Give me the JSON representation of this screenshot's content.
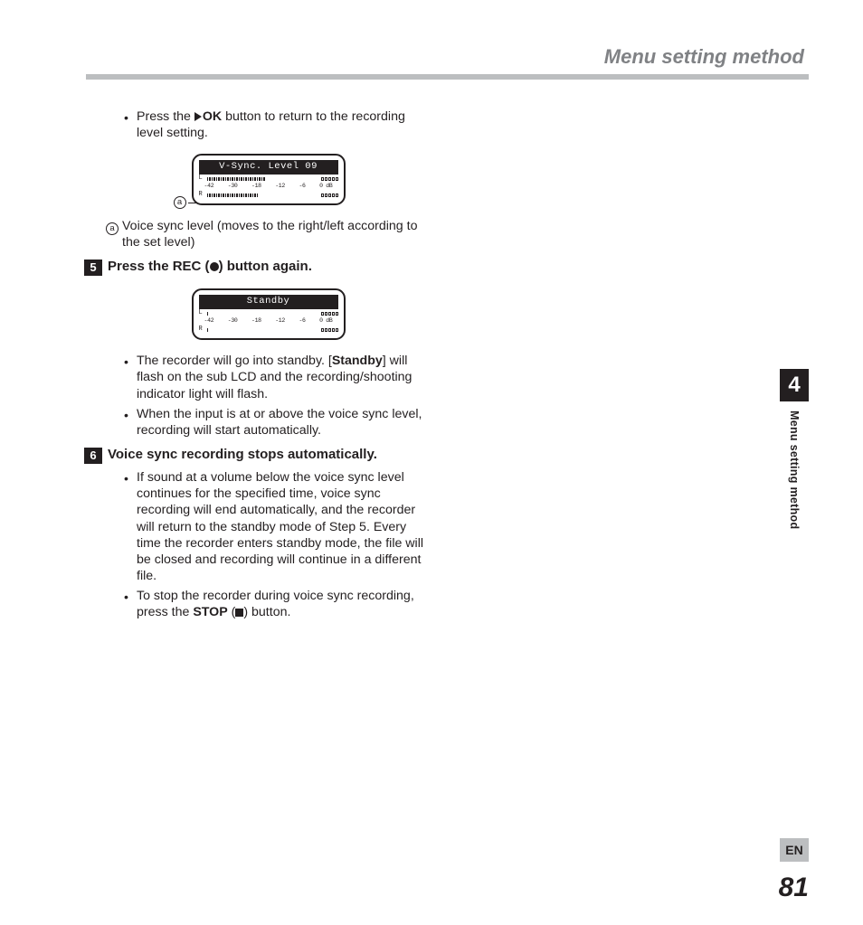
{
  "header": {
    "title": "Menu setting method"
  },
  "top_bullet": {
    "pre": "Press the ",
    "tri_ok": "OK",
    "post": " button to return to the recording level setting."
  },
  "lcd1": {
    "title": "V-Sync. Level 09",
    "ch_left": "L",
    "ch_right": "R",
    "scale": [
      "-42",
      "-30",
      "-18",
      "-12",
      "-6",
      "0 dB"
    ],
    "annot_letter": "a"
  },
  "annot_a": {
    "letter": "a",
    "text": "Voice sync level (moves to the right/left according to the set level)"
  },
  "step5": {
    "num": "5",
    "pre": "Press the ",
    "rec": "REC",
    "mid": " (",
    "post": ") button again."
  },
  "lcd2": {
    "title": "Standby",
    "ch_left": "L",
    "ch_right": "R",
    "scale": [
      "-42",
      "-30",
      "-18",
      "-12",
      "-6",
      "0 dB"
    ]
  },
  "step5_bullets": [
    {
      "pre": "The recorder will go into standby. [",
      "bold": "Standby",
      "post": "] will flash on the sub LCD and the recording/shooting indicator light will flash."
    },
    {
      "plain": "When the input is at or above the voice sync level, recording will start automatically."
    }
  ],
  "step6": {
    "num": "6",
    "title": "Voice sync recording stops automatically."
  },
  "step6_bullets": [
    {
      "plain": "If sound at a volume below the voice sync level continues for the specified time, voice sync recording will end automatically, and the recorder will return to the standby mode of Step 5. Every time the recorder enters standby mode, the file will be closed and recording will continue in a different file."
    },
    {
      "pre": "To stop the recorder during voice sync recording, press the ",
      "bold": "STOP",
      "mid": " (",
      "post": ") button."
    }
  ],
  "side": {
    "chapter_num": "4",
    "chapter_label": "Menu setting method"
  },
  "footer": {
    "lang": "EN",
    "page": "81"
  }
}
